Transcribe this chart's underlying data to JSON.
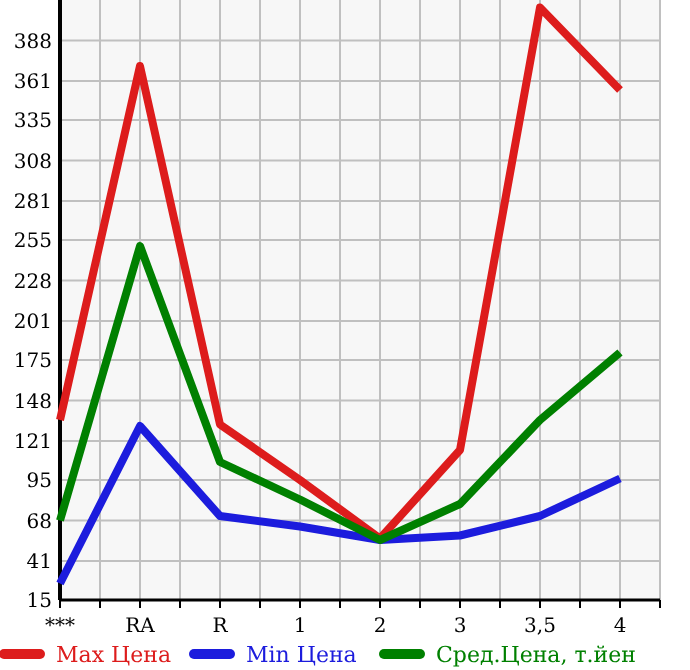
{
  "chart_data": {
    "type": "line",
    "categories": [
      "***",
      "RA",
      "R",
      "1",
      "2",
      "3",
      "3,5",
      "4"
    ],
    "ylim": [
      15,
      415
    ],
    "yticks": [
      15,
      41,
      68,
      95,
      121,
      148,
      175,
      201,
      228,
      255,
      281,
      308,
      335,
      361,
      388
    ],
    "grid": true,
    "legend": "bottom",
    "marker": "none",
    "line_style": "solid",
    "series": [
      {
        "name": "Max Цена",
        "color": "#dd1c1c",
        "values": [
          135,
          371,
          132,
          95,
          56,
          115,
          410,
          355
        ]
      },
      {
        "name": "Min Цена",
        "color": "#1c1cdd",
        "values": [
          26,
          131,
          71,
          64,
          55,
          58,
          71,
          96
        ]
      },
      {
        "name": "Сред.Цена, т.йен",
        "color": "#008000",
        "values": [
          68,
          251,
          107,
          82,
          55,
          79,
          135,
          180
        ]
      }
    ]
  }
}
